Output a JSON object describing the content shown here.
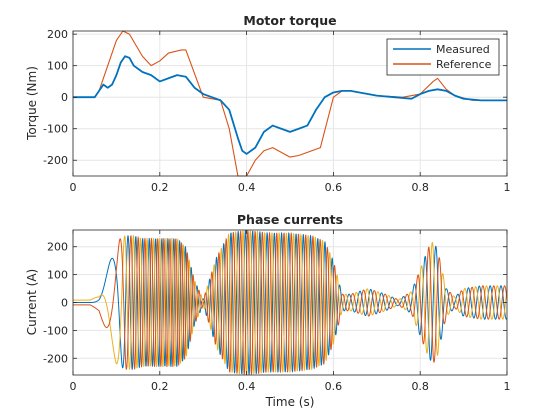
{
  "chart_data": [
    {
      "type": "line",
      "title": "Motor torque",
      "xlabel": "",
      "ylabel": "Torque (Nm)",
      "xlim": [
        0,
        1
      ],
      "ylim": [
        -250,
        210
      ],
      "xticks": [
        0,
        0.2,
        0.4,
        0.6,
        0.8,
        1
      ],
      "xtick_labels": [
        "0",
        "0.2",
        "0.4",
        "0.6",
        "0.8",
        "1"
      ],
      "yticks": [
        -200,
        -100,
        0,
        100,
        200
      ],
      "ytick_labels": [
        "-200",
        "-100",
        "0",
        "100",
        "200"
      ],
      "grid": true,
      "legend": "top-right",
      "series": [
        {
          "name": "Measured",
          "color": "#0072BD",
          "x": [
            0,
            0.05,
            0.06,
            0.07,
            0.08,
            0.09,
            0.1,
            0.11,
            0.12,
            0.13,
            0.14,
            0.16,
            0.18,
            0.2,
            0.22,
            0.24,
            0.26,
            0.28,
            0.3,
            0.32,
            0.34,
            0.36,
            0.38,
            0.39,
            0.4,
            0.42,
            0.44,
            0.46,
            0.48,
            0.5,
            0.52,
            0.54,
            0.56,
            0.58,
            0.6,
            0.62,
            0.64,
            0.66,
            0.7,
            0.74,
            0.78,
            0.8,
            0.82,
            0.84,
            0.86,
            0.88,
            0.9,
            0.94,
            1.0
          ],
          "y": [
            0,
            0,
            20,
            40,
            30,
            40,
            70,
            110,
            130,
            125,
            100,
            80,
            70,
            50,
            60,
            70,
            65,
            30,
            10,
            0,
            -10,
            -40,
            -130,
            -170,
            -180,
            -160,
            -110,
            -90,
            -100,
            -110,
            -100,
            -90,
            -40,
            0,
            15,
            20,
            20,
            15,
            5,
            0,
            -5,
            10,
            20,
            25,
            20,
            5,
            -5,
            -10,
            -10
          ]
        },
        {
          "name": "Reference",
          "color": "#D95319",
          "x": [
            0,
            0.05,
            0.06,
            0.08,
            0.1,
            0.115,
            0.13,
            0.16,
            0.18,
            0.2,
            0.22,
            0.25,
            0.26,
            0.3,
            0.34,
            0.36,
            0.38,
            0.4,
            0.42,
            0.44,
            0.46,
            0.48,
            0.5,
            0.52,
            0.54,
            0.57,
            0.6,
            0.62,
            0.64,
            0.66,
            0.7,
            0.76,
            0.8,
            0.83,
            0.84,
            0.86,
            0.88,
            0.92,
            1.0
          ],
          "y": [
            0,
            0,
            20,
            100,
            180,
            220,
            200,
            130,
            100,
            115,
            140,
            150,
            150,
            0,
            -10,
            -100,
            -250,
            -250,
            -200,
            -170,
            -160,
            -175,
            -190,
            -185,
            -175,
            -160,
            0,
            20,
            20,
            15,
            5,
            0,
            10,
            50,
            60,
            25,
            5,
            -10,
            -10
          ]
        }
      ]
    },
    {
      "type": "line",
      "title": "Phase currents",
      "xlabel": "Time (s)",
      "ylabel": "Current (A)",
      "xlim": [
        0,
        1
      ],
      "ylim": [
        -260,
        260
      ],
      "xticks": [
        0,
        0.2,
        0.4,
        0.6,
        0.8,
        1
      ],
      "xtick_labels": [
        "0",
        "0.2",
        "0.4",
        "0.6",
        "0.8",
        "1"
      ],
      "yticks": [
        -200,
        -100,
        0,
        100,
        200
      ],
      "ytick_labels": [
        "-200",
        "-100",
        "0",
        "100",
        "200"
      ],
      "grid": true,
      "series_colors": [
        "#0072BD",
        "#D95319",
        "#EDB120"
      ],
      "envelope": {
        "t": [
          0,
          0.04,
          0.06,
          0.08,
          0.1,
          0.12,
          0.14,
          0.16,
          0.2,
          0.24,
          0.26,
          0.28,
          0.3,
          0.33,
          0.36,
          0.4,
          0.45,
          0.5,
          0.55,
          0.58,
          0.6,
          0.62,
          0.64,
          0.66,
          0.68,
          0.72,
          0.75,
          0.78,
          0.8,
          0.82,
          0.83,
          0.84,
          0.86,
          0.88,
          0.9,
          0.94,
          0.98,
          1.0
        ],
        "amp": [
          10,
          10,
          30,
          120,
          220,
          240,
          240,
          230,
          230,
          230,
          200,
          80,
          10,
          160,
          250,
          260,
          250,
          250,
          240,
          220,
          150,
          30,
          30,
          40,
          50,
          30,
          10,
          40,
          120,
          200,
          220,
          190,
          50,
          20,
          50,
          60,
          60,
          60
        ],
        "freq": [
          0,
          0,
          5,
          10,
          12,
          40,
          60,
          65,
          70,
          75,
          75,
          75,
          70,
          60,
          60,
          60,
          60,
          60,
          60,
          60,
          60,
          50,
          40,
          40,
          40,
          40,
          40,
          40,
          40,
          40,
          40,
          40,
          40,
          40,
          40,
          40,
          40,
          40
        ]
      }
    }
  ]
}
